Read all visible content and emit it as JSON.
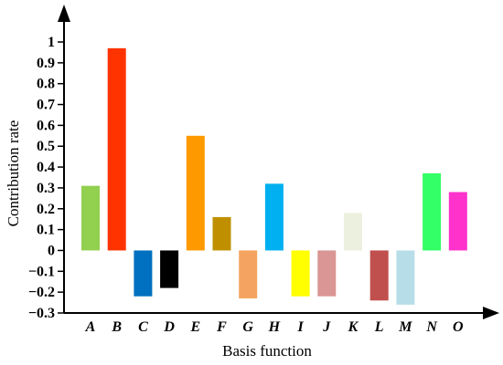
{
  "chart_data": {
    "type": "bar",
    "title": "",
    "xlabel": "Basis function",
    "ylabel": "Contribution rate",
    "ylim": [
      -0.3,
      1.0
    ],
    "yticks": [
      "1",
      "0.9",
      "0.8",
      "0.7",
      "0.6",
      "0.5",
      "0.4",
      "0.3",
      "0.2",
      "0.1",
      "0",
      "−0.1",
      "−0.2",
      "−0.3"
    ],
    "categories": [
      "A",
      "B",
      "C",
      "D",
      "E",
      "F",
      "G",
      "H",
      "I",
      "J",
      "K",
      "L",
      "M",
      "N",
      "O"
    ],
    "values": [
      0.31,
      0.97,
      -0.22,
      -0.18,
      0.55,
      0.16,
      -0.23,
      0.32,
      -0.22,
      -0.22,
      0.18,
      -0.24,
      -0.26,
      0.37,
      0.28
    ],
    "colors": [
      "#92d050",
      "#ff3300",
      "#0070c0",
      "#000000",
      "#ff9900",
      "#bf8f00",
      "#f4a460",
      "#00b0f0",
      "#ffff00",
      "#d99694",
      "#ebf1de",
      "#c0504d",
      "#b7dee8",
      "#33ff66",
      "#ff33cc"
    ],
    "grid": false,
    "legend": "none"
  }
}
